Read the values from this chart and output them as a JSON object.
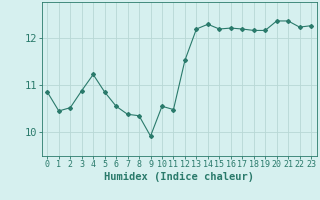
{
  "x": [
    0,
    1,
    2,
    3,
    4,
    5,
    6,
    7,
    8,
    9,
    10,
    11,
    12,
    13,
    14,
    15,
    16,
    17,
    18,
    19,
    20,
    21,
    22,
    23
  ],
  "y": [
    10.85,
    10.45,
    10.52,
    10.88,
    11.22,
    10.85,
    10.55,
    10.38,
    10.35,
    9.92,
    10.55,
    10.48,
    11.52,
    12.18,
    12.28,
    12.18,
    12.2,
    12.18,
    12.15,
    12.15,
    12.35,
    12.35,
    12.22,
    12.25
  ],
  "line_color": "#2a7a6b",
  "marker": "D",
  "marker_size": 2.0,
  "bg_color": "#d6f0ef",
  "grid_color": "#b8d8d5",
  "xlabel": "Humidex (Indice chaleur)",
  "ylim": [
    9.5,
    12.75
  ],
  "xlim": [
    -0.5,
    23.5
  ],
  "yticks": [
    10,
    11,
    12
  ],
  "xticks": [
    0,
    1,
    2,
    3,
    4,
    5,
    6,
    7,
    8,
    9,
    10,
    11,
    12,
    13,
    14,
    15,
    16,
    17,
    18,
    19,
    20,
    21,
    22,
    23
  ],
  "tick_color": "#2a7a6b",
  "font_color": "#2a7a6b",
  "xlabel_fontsize": 7.5,
  "tick_fontsize": 6.0,
  "ytick_fontsize": 7.5
}
